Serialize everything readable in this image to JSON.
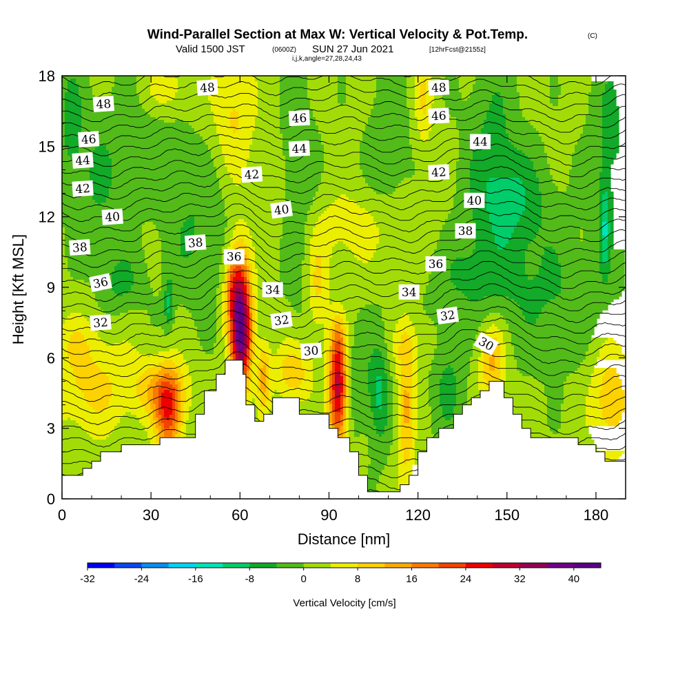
{
  "chart_data": {
    "type": "heatmap",
    "title": "Wind-Parallel Section at Max W: Vertical Velocity & Pot.Temp.",
    "title_mark": "(C)",
    "subtitle": {
      "valid": "Valid 1500 JST",
      "zulu": "(0600Z)",
      "date": "SUN 27 Jun 2021",
      "forecast": "[12hrFcst@2155z]",
      "indices": "i,j,k,angle=27,28,24,43"
    },
    "xlabel": "Distance [nm]",
    "ylabel": "Height [Kft MSL]",
    "xlim": [
      0,
      190
    ],
    "ylim": [
      0,
      18
    ],
    "xticks": [
      0,
      30,
      60,
      90,
      120,
      150,
      180
    ],
    "yticks": [
      0,
      3,
      6,
      9,
      12,
      15,
      18
    ],
    "colorbar": {
      "label": "Vertical Velocity [cm/s]",
      "min": -32,
      "max": 44,
      "step": 4,
      "tick_values": [
        -32,
        -24,
        -16,
        -8,
        0,
        8,
        16,
        24,
        32,
        40
      ],
      "tick_labels": [
        "-32",
        "-24",
        "-16",
        "-8",
        "0",
        "8",
        "16",
        "24",
        "32",
        "40"
      ],
      "colors": [
        "#0000ee",
        "#0e45ee",
        "#0b8cee",
        "#00d4f4",
        "#00e4b8",
        "#00cc6a",
        "#12aa28",
        "#52bb1a",
        "#a2dc08",
        "#ecee00",
        "#fcd200",
        "#fcaa00",
        "#f87a00",
        "#f04400",
        "#ee0000",
        "#be0032",
        "#940050",
        "#700085",
        "#5a0085"
      ]
    },
    "terrain": [
      [
        0,
        1.0
      ],
      [
        7,
        1.0
      ],
      [
        7,
        1.3
      ],
      [
        10,
        1.3
      ],
      [
        10,
        1.6
      ],
      [
        13,
        1.6
      ],
      [
        13,
        2.0
      ],
      [
        20,
        2.0
      ],
      [
        20,
        2.3
      ],
      [
        33,
        2.3
      ],
      [
        33,
        2.6
      ],
      [
        45,
        2.6
      ],
      [
        45,
        3.6
      ],
      [
        48,
        3.6
      ],
      [
        48,
        4.6
      ],
      [
        52,
        4.6
      ],
      [
        52,
        5.3
      ],
      [
        55,
        5.3
      ],
      [
        55,
        5.9
      ],
      [
        61,
        5.9
      ],
      [
        61,
        5.3
      ],
      [
        62,
        5.3
      ],
      [
        62,
        4.0
      ],
      [
        65,
        4.0
      ],
      [
        65,
        3.3
      ],
      [
        68,
        3.3
      ],
      [
        68,
        3.6
      ],
      [
        71,
        3.6
      ],
      [
        71,
        4.3
      ],
      [
        80,
        4.3
      ],
      [
        80,
        3.6
      ],
      [
        84,
        3.6
      ],
      [
        84,
        3.6
      ],
      [
        88,
        3.6
      ],
      [
        88,
        3.6
      ],
      [
        90,
        3.6
      ],
      [
        90,
        3.0
      ],
      [
        93,
        3.0
      ],
      [
        93,
        2.6
      ],
      [
        97,
        2.6
      ],
      [
        97,
        2.0
      ],
      [
        100,
        2.0
      ],
      [
        100,
        1.0
      ],
      [
        103,
        1.0
      ],
      [
        103,
        0.3
      ],
      [
        114,
        0.3
      ],
      [
        114,
        0.6
      ],
      [
        117,
        0.6
      ],
      [
        117,
        1.0
      ],
      [
        120,
        1.0
      ],
      [
        120,
        2.0
      ],
      [
        123,
        2.0
      ],
      [
        123,
        2.6
      ],
      [
        127,
        2.6
      ],
      [
        127,
        3.0
      ],
      [
        132,
        3.0
      ],
      [
        132,
        3.6
      ],
      [
        135,
        3.6
      ],
      [
        135,
        4.0
      ],
      [
        138,
        4.0
      ],
      [
        138,
        4.3
      ],
      [
        141,
        4.3
      ],
      [
        141,
        4.6
      ],
      [
        144,
        4.6
      ],
      [
        144,
        5.0
      ],
      [
        149,
        5.0
      ],
      [
        149,
        4.3
      ],
      [
        152,
        4.3
      ],
      [
        152,
        3.6
      ],
      [
        155,
        3.6
      ],
      [
        155,
        3.0
      ],
      [
        158,
        3.0
      ],
      [
        158,
        2.6
      ],
      [
        161,
        2.6
      ],
      [
        161,
        2.6
      ],
      [
        174,
        2.6
      ],
      [
        174,
        2.3
      ],
      [
        180,
        2.3
      ],
      [
        180,
        2.0
      ],
      [
        183,
        2.0
      ],
      [
        183,
        1.6
      ],
      [
        190,
        1.6
      ]
    ],
    "vv_field": {
      "background": 1,
      "features": [
        {
          "x": 60,
          "y": 7.8,
          "sx": 2.6,
          "sy": 1.9,
          "v": 36
        },
        {
          "x": 61,
          "y": 6.4,
          "sx": 2.0,
          "sy": 1.2,
          "v": 10
        },
        {
          "x": 57,
          "y": 9.2,
          "sx": 1.6,
          "sy": 0.9,
          "v": 8
        },
        {
          "x": 93,
          "y": 4.4,
          "sx": 2.2,
          "sy": 1.5,
          "v": 28
        },
        {
          "x": 93,
          "y": 6.5,
          "sx": 2.0,
          "sy": 1.0,
          "v": 10
        },
        {
          "x": 36,
          "y": 3.6,
          "sx": 3.2,
          "sy": 1.2,
          "v": 20
        },
        {
          "x": 33,
          "y": 4.7,
          "sx": 6.5,
          "sy": 0.9,
          "v": 10
        },
        {
          "x": 10,
          "y": 4.8,
          "sx": 10,
          "sy": 1.5,
          "v": 8
        },
        {
          "x": 5,
          "y": 6.8,
          "sx": 5,
          "sy": 0.8,
          "v": 4
        },
        {
          "x": 185,
          "y": 4.2,
          "sx": 5,
          "sy": 1.7,
          "v": 10
        },
        {
          "x": 145,
          "y": 5.8,
          "sx": 3,
          "sy": 1.2,
          "v": 12
        },
        {
          "x": 116,
          "y": 3.8,
          "sx": 2,
          "sy": 2.2,
          "v": 12
        },
        {
          "x": 78,
          "y": 5.4,
          "sx": 4.5,
          "sy": 0.9,
          "v": 10
        },
        {
          "x": 68,
          "y": 5.2,
          "sx": 1.5,
          "sy": 1.1,
          "v": 12
        },
        {
          "x": 86,
          "y": 9.0,
          "sx": 2.5,
          "sy": 1.4,
          "v": 8
        },
        {
          "x": 58,
          "y": 16.5,
          "sx": 5,
          "sy": 2.0,
          "v": 8
        },
        {
          "x": 35,
          "y": 17.5,
          "sx": 6,
          "sy": 0.8,
          "v": 6
        },
        {
          "x": 122,
          "y": 17.0,
          "sx": 2.2,
          "sy": 1.6,
          "v": 7
        },
        {
          "x": 100,
          "y": 11.5,
          "sx": 15,
          "sy": 1.2,
          "v": 5
        },
        {
          "x": 118,
          "y": 6.5,
          "sx": 6,
          "sy": 0.8,
          "v": 4
        },
        {
          "x": 107,
          "y": 4.5,
          "sx": 2.3,
          "sy": 1.6,
          "v": -10
        },
        {
          "x": 150,
          "y": 12.7,
          "sx": 9,
          "sy": 1.5,
          "v": -10
        },
        {
          "x": 183,
          "y": 11.5,
          "sx": 1.2,
          "sy": 1.4,
          "v": -10
        },
        {
          "x": 36,
          "y": 8.3,
          "sx": 1.0,
          "sy": 0.7,
          "v": -10
        },
        {
          "x": 20,
          "y": 9.2,
          "sx": 5,
          "sy": 0.9,
          "v": -6
        },
        {
          "x": 12,
          "y": 13.5,
          "sx": 6,
          "sy": 2.2,
          "v": -5
        },
        {
          "x": 3,
          "y": 16.0,
          "sx": 3,
          "sy": 2,
          "v": -6
        },
        {
          "x": 28,
          "y": 15.5,
          "sx": 8,
          "sy": 2,
          "v": -3
        },
        {
          "x": 45,
          "y": 11.5,
          "sx": 8,
          "sy": 2.3,
          "v": -5
        },
        {
          "x": 80,
          "y": 13.0,
          "sx": 4,
          "sy": 3.5,
          "v": -5
        },
        {
          "x": 110,
          "y": 14.5,
          "sx": 5,
          "sy": 3,
          "v": -4
        },
        {
          "x": 145,
          "y": 16.0,
          "sx": 6,
          "sy": 2,
          "v": -5
        },
        {
          "x": 165,
          "y": 8.5,
          "sx": 12,
          "sy": 2,
          "v": -5
        },
        {
          "x": 130,
          "y": 5.0,
          "sx": 4,
          "sy": 1.8,
          "v": -6
        },
        {
          "x": 140,
          "y": 9.5,
          "sx": 10,
          "sy": 1.3,
          "v": -6
        },
        {
          "x": 185,
          "y": 15.0,
          "sx": 5,
          "sy": 3,
          "v": -6
        },
        {
          "x": 100,
          "y": 5.0,
          "sx": 3,
          "sy": 1.5,
          "v": -5
        }
      ]
    },
    "theta_field": {
      "base": 29.8,
      "lapse": 1.05,
      "ridges": [
        {
          "x": 60,
          "amp": 1.4,
          "sx": 7,
          "sy": 8
        },
        {
          "x": 140,
          "amp": 0.6,
          "sx": 14,
          "sy": 7
        }
      ],
      "levels": [
        29,
        29.5,
        30,
        30.5,
        31,
        31.5,
        32,
        32.5,
        33,
        33.5,
        34,
        34.5,
        35,
        35.5,
        36,
        36.5,
        37,
        37.5,
        38,
        38.5,
        39,
        39.5,
        40,
        40.5,
        41,
        41.5,
        42,
        42.5,
        43,
        43.5,
        44,
        44.5,
        45,
        45.5,
        46,
        46.5,
        47,
        47.5,
        48,
        48.5,
        49
      ]
    },
    "contour_labels": [
      {
        "text": "48",
        "x": 14,
        "y": 16.8,
        "angle": -4
      },
      {
        "text": "48",
        "x": 49,
        "y": 17.5,
        "angle": -4
      },
      {
        "text": "48",
        "x": 127,
        "y": 17.5,
        "angle": -3
      },
      {
        "text": "46",
        "x": 9,
        "y": 15.3,
        "angle": -4
      },
      {
        "text": "46",
        "x": 80,
        "y": 16.2,
        "angle": -3
      },
      {
        "text": "46",
        "x": 127,
        "y": 16.3,
        "angle": -3
      },
      {
        "text": "44",
        "x": 7,
        "y": 14.4,
        "angle": -4
      },
      {
        "text": "44",
        "x": 80,
        "y": 14.9,
        "angle": -3
      },
      {
        "text": "44",
        "x": 141,
        "y": 15.2,
        "angle": 0
      },
      {
        "text": "42",
        "x": 7,
        "y": 13.2,
        "angle": -4
      },
      {
        "text": "42",
        "x": 64,
        "y": 13.8,
        "angle": -4
      },
      {
        "text": "42",
        "x": 127,
        "y": 13.9,
        "angle": -3
      },
      {
        "text": "40",
        "x": 17,
        "y": 12.0,
        "angle": -4
      },
      {
        "text": "40",
        "x": 74,
        "y": 12.3,
        "angle": -8
      },
      {
        "text": "40",
        "x": 139,
        "y": 12.7,
        "angle": 0
      },
      {
        "text": "38",
        "x": 6,
        "y": 10.7,
        "angle": -4
      },
      {
        "text": "38",
        "x": 45,
        "y": 10.9,
        "angle": -4
      },
      {
        "text": "38",
        "x": 136,
        "y": 11.4,
        "angle": 0
      },
      {
        "text": "36",
        "x": 13,
        "y": 9.2,
        "angle": -12
      },
      {
        "text": "36",
        "x": 58,
        "y": 10.3,
        "angle": 0
      },
      {
        "text": "36",
        "x": 126,
        "y": 10.0,
        "angle": 0
      },
      {
        "text": "34",
        "x": 71,
        "y": 8.9,
        "angle": 0
      },
      {
        "text": "34",
        "x": 117,
        "y": 8.8,
        "angle": 0
      },
      {
        "text": "32",
        "x": 13,
        "y": 7.5,
        "angle": -4
      },
      {
        "text": "32",
        "x": 74,
        "y": 7.6,
        "angle": -8
      },
      {
        "text": "32",
        "x": 130,
        "y": 7.8,
        "angle": -8
      },
      {
        "text": "30",
        "x": 84,
        "y": 6.3,
        "angle": -4
      },
      {
        "text": "30",
        "x": 143,
        "y": 6.6,
        "angle": 30
      }
    ]
  }
}
